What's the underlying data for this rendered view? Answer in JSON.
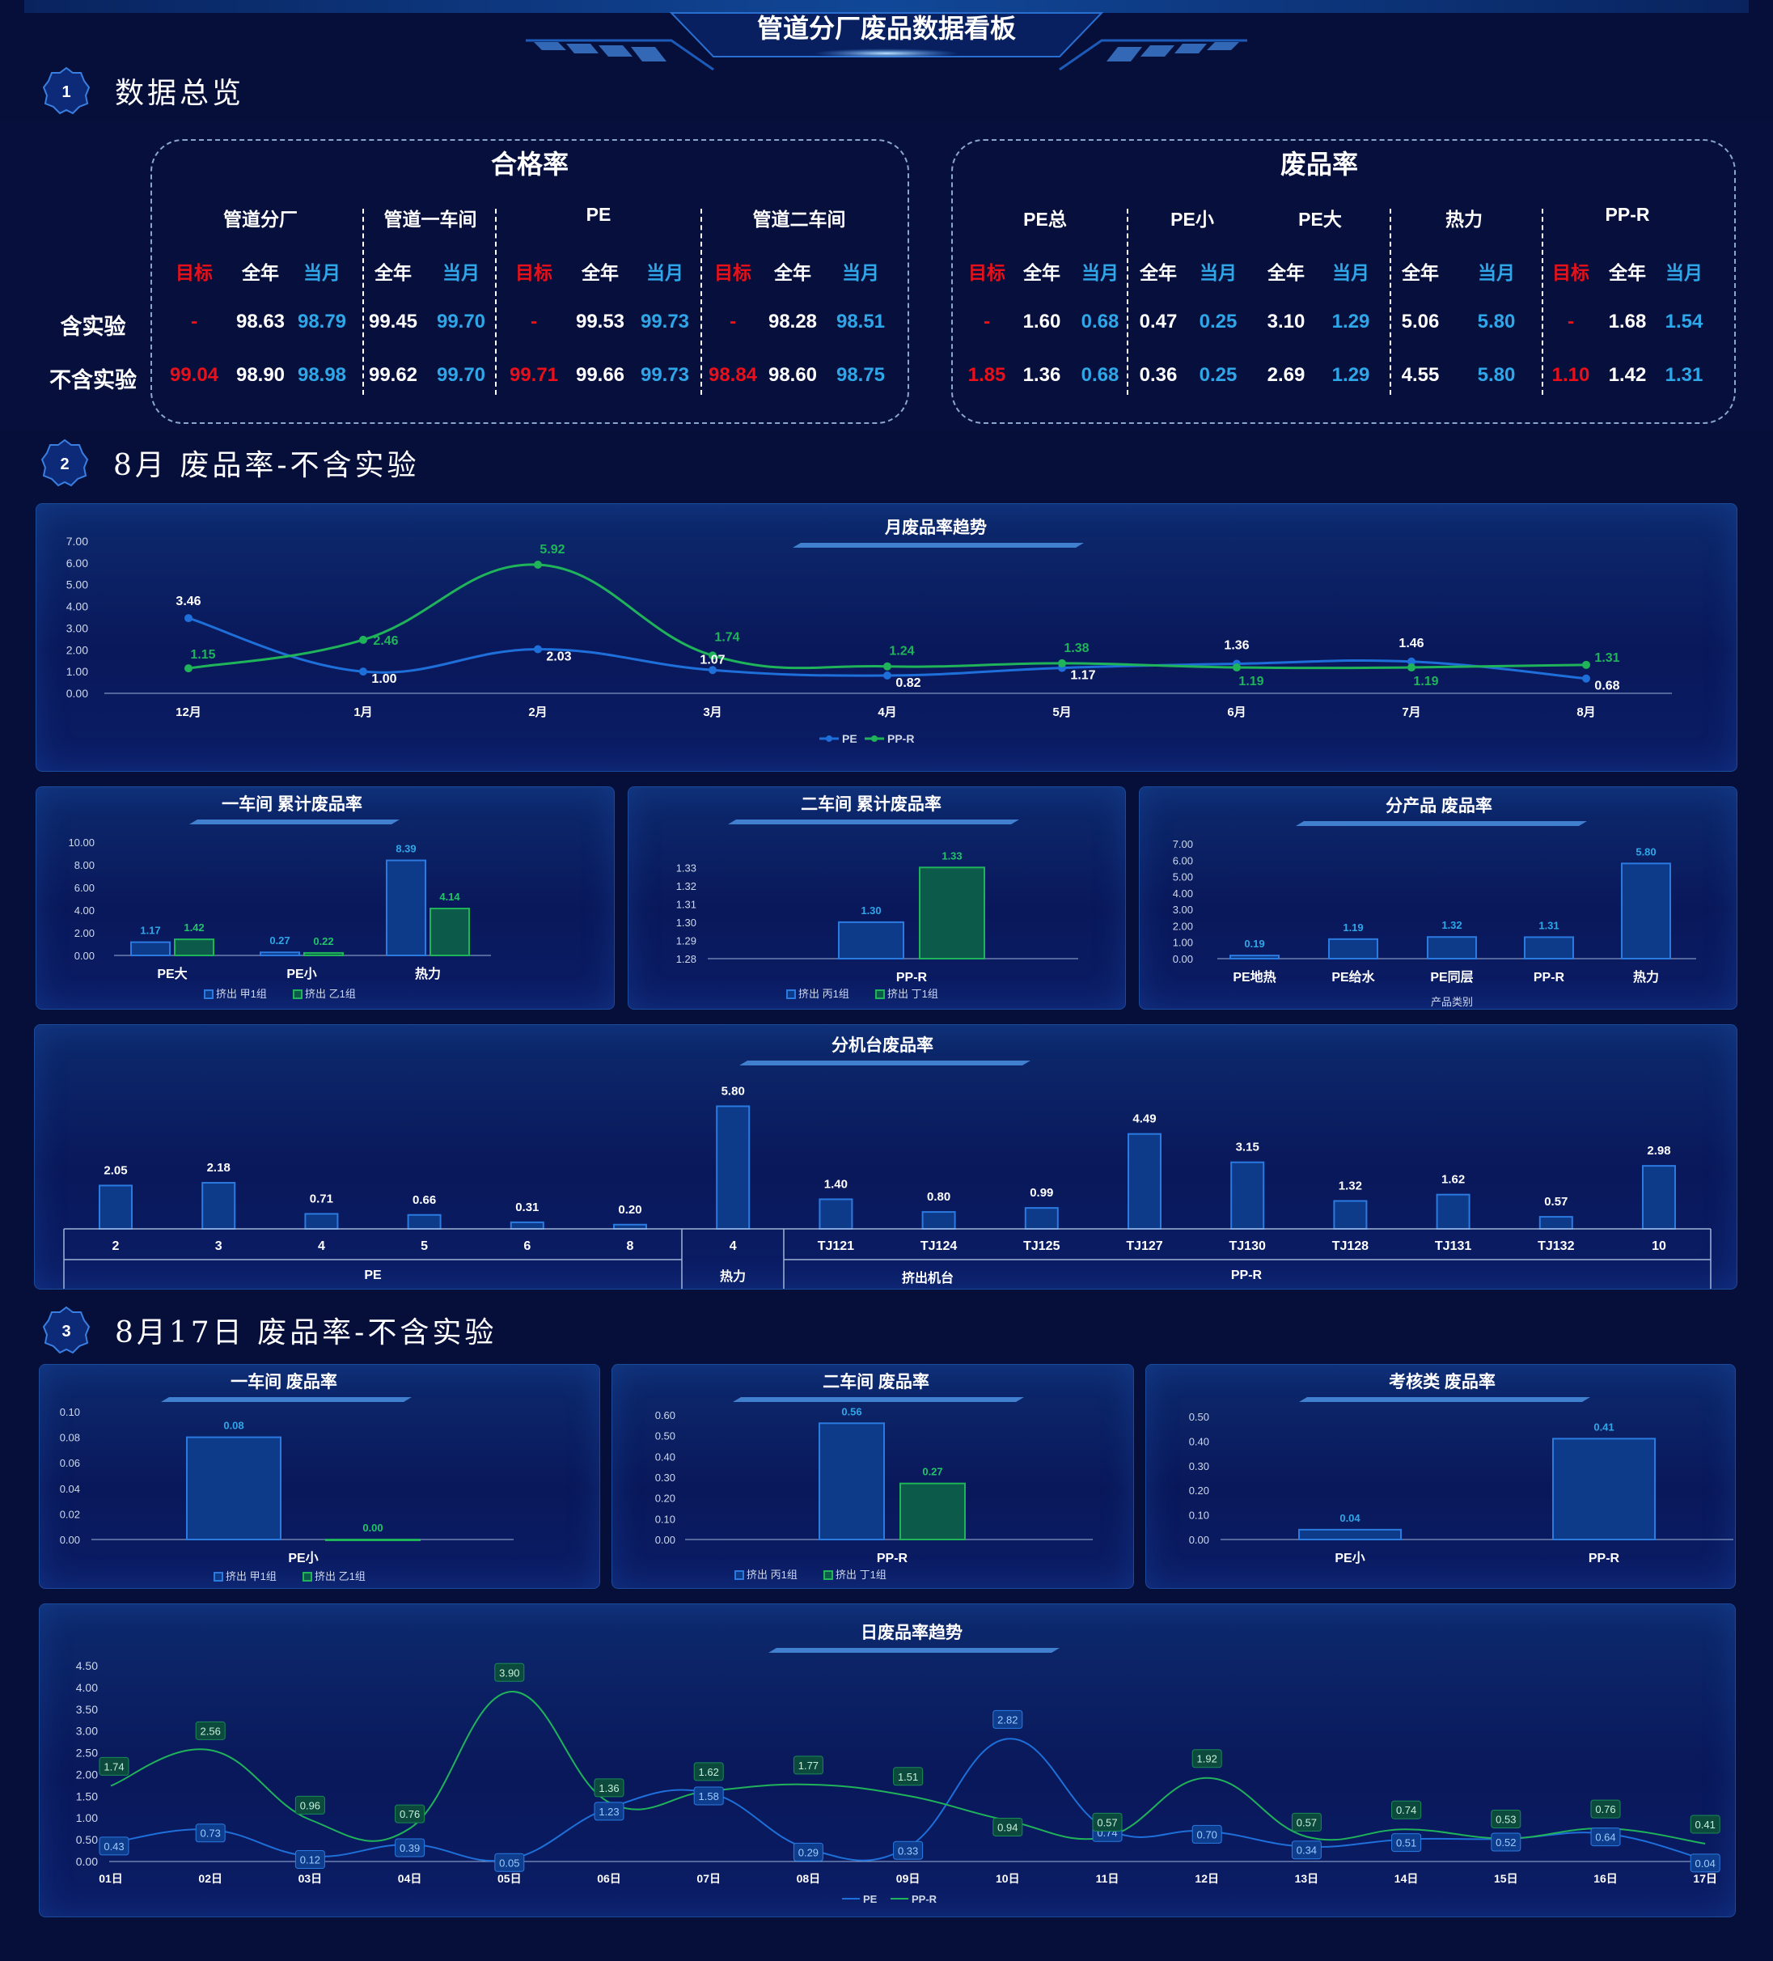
{
  "page_title": "管道分厂废品数据看板",
  "sections": [
    {
      "num": "1",
      "title": "数据总览"
    },
    {
      "num": "2",
      "title": "8月 废品率-不含实验"
    },
    {
      "num": "3",
      "title": "8月17日 废品率-不含实验"
    }
  ],
  "overview": {
    "pass_rate": {
      "title": "合格率",
      "groups": [
        "管道分厂",
        "管道一车间",
        "PE",
        "管道二车间"
      ],
      "col_labels": [
        "目标",
        "全年",
        "当月",
        "全年",
        "当月",
        "目标",
        "全年",
        "当月",
        "目标",
        "全年",
        "当月"
      ],
      "rows": [
        {
          "label": "含实验",
          "values": [
            "-",
            "98.63",
            "98.79",
            "99.45",
            "99.70",
            "-",
            "99.53",
            "99.73",
            "-",
            "98.28",
            "98.51"
          ]
        },
        {
          "label": "不含实验",
          "values": [
            "99.04",
            "98.90",
            "98.98",
            "99.62",
            "99.70",
            "99.71",
            "99.66",
            "99.73",
            "98.84",
            "98.60",
            "98.75"
          ]
        }
      ]
    },
    "scrap_rate": {
      "title": "废品率",
      "groups": [
        "PE总",
        "PE小",
        "PE大",
        "热力",
        "PP-R"
      ],
      "col_labels": [
        "目标",
        "全年",
        "当月",
        "全年",
        "当月",
        "全年",
        "当月",
        "全年",
        "当月",
        "目标",
        "全年",
        "当月"
      ],
      "rows": [
        {
          "values": [
            "-",
            "1.60",
            "0.68",
            "0.47",
            "0.25",
            "3.10",
            "1.29",
            "5.06",
            "5.80",
            "-",
            "1.68",
            "1.54"
          ]
        },
        {
          "values": [
            "1.85",
            "1.36",
            "0.68",
            "0.36",
            "0.25",
            "2.69",
            "1.29",
            "4.55",
            "5.80",
            "1.10",
            "1.42",
            "1.31"
          ]
        }
      ]
    }
  },
  "colors": {
    "red": "#e8101a",
    "blue": "#2fa6e8",
    "pe": "#1e6fd9",
    "ppr": "#1fb35a",
    "bar_blue": "#0e3a8a",
    "bar_green": "#0c5a4a"
  },
  "chart_data": [
    {
      "id": "monthly",
      "type": "line",
      "title": "月废品率趋势",
      "categories": [
        "12月",
        "1月",
        "2月",
        "3月",
        "4月",
        "5月",
        "6月",
        "7月",
        "8月"
      ],
      "series": [
        {
          "name": "PE",
          "values": [
            3.46,
            1.0,
            2.03,
            1.07,
            0.82,
            1.17,
            1.36,
            1.46,
            0.68
          ]
        },
        {
          "name": "PP-R",
          "values": [
            1.15,
            2.46,
            5.92,
            1.74,
            1.24,
            1.38,
            1.19,
            1.19,
            1.31
          ]
        }
      ],
      "yticks": [
        "0.00",
        "1.00",
        "2.00",
        "3.00",
        "4.00",
        "5.00",
        "6.00",
        "7.00"
      ],
      "ylim": [
        0,
        7
      ],
      "legend": "bottom"
    },
    {
      "id": "ws1",
      "type": "bar",
      "title": "一车间 累计废品率",
      "categories": [
        "PE大",
        "PE小",
        "热力"
      ],
      "series": [
        {
          "name": "挤出 甲1组",
          "values": [
            1.17,
            0.27,
            8.39
          ]
        },
        {
          "name": "挤出 乙1组",
          "values": [
            1.42,
            0.22,
            4.14
          ]
        }
      ],
      "yticks": [
        "0.00",
        "2.00",
        "4.00",
        "6.00",
        "8.00",
        "10.00"
      ],
      "ylim": [
        0,
        10
      ],
      "legend": "bottom"
    },
    {
      "id": "ws2",
      "type": "bar",
      "title": "二车间 累计废品率",
      "categories": [
        "PP-R"
      ],
      "series": [
        {
          "name": "挤出 丙1组",
          "values": [
            1.3
          ]
        },
        {
          "name": "挤出 丁1组",
          "values": [
            1.33
          ]
        }
      ],
      "yticks": [
        "1.28",
        "1.29",
        "1.30",
        "1.31",
        "1.32",
        "1.33"
      ],
      "ylim": [
        1.28,
        1.335
      ],
      "legend": "bottom"
    },
    {
      "id": "product",
      "type": "bar",
      "title": "分产品 废品率",
      "categories": [
        "PE地热",
        "PE给水",
        "PE同层",
        "PP-R",
        "热力"
      ],
      "series": [
        {
          "values": [
            0.19,
            1.19,
            1.32,
            1.31,
            5.8
          ]
        }
      ],
      "yticks": [
        "0.00",
        "1.00",
        "2.00",
        "3.00",
        "4.00",
        "5.00",
        "6.00",
        "7.00"
      ],
      "ylim": [
        0,
        7
      ],
      "xlabel": "产品类别"
    },
    {
      "id": "machines",
      "type": "bar",
      "title": "分机台废品率",
      "categories": [
        "2",
        "3",
        "4",
        "5",
        "6",
        "8",
        "4",
        "TJ121",
        "TJ124",
        "TJ125",
        "TJ127",
        "TJ130",
        "TJ128",
        "TJ131",
        "TJ132",
        "10"
      ],
      "series": [
        {
          "values": [
            2.05,
            2.18,
            0.71,
            0.66,
            0.31,
            0.2,
            5.8,
            1.4,
            0.8,
            0.99,
            4.49,
            3.15,
            1.32,
            1.62,
            0.57,
            2.98
          ]
        }
      ],
      "groups": [
        "PE",
        "热力",
        "挤出机台",
        "PP-R"
      ],
      "ylim": [
        0,
        6.2
      ]
    },
    {
      "id": "d_ws1",
      "type": "bar",
      "title": "一车间 废品率",
      "categories": [
        "PE小"
      ],
      "series": [
        {
          "name": "挤出 甲1组",
          "values": [
            0.08
          ]
        },
        {
          "name": "挤出 乙1组",
          "values": [
            0.0
          ]
        }
      ],
      "yticks": [
        "0.00",
        "0.02",
        "0.04",
        "0.06",
        "0.08",
        "0.10"
      ],
      "ylim": [
        0,
        0.1
      ],
      "legend": "bottom"
    },
    {
      "id": "d_ws2",
      "type": "bar",
      "title": "二车间 废品率",
      "categories": [
        "PP-R"
      ],
      "series": [
        {
          "name": "挤出 丙1组",
          "values": [
            0.56
          ]
        },
        {
          "name": "挤出 丁1组",
          "values": [
            0.27
          ]
        }
      ],
      "yticks": [
        "0.00",
        "0.10",
        "0.20",
        "0.30",
        "0.40",
        "0.50",
        "0.60"
      ],
      "ylim": [
        0,
        0.6
      ],
      "legend": "bottom"
    },
    {
      "id": "d_exam",
      "type": "bar",
      "title": "考核类 废品率",
      "categories": [
        "PE小",
        "PP-R"
      ],
      "series": [
        {
          "values": [
            0.04,
            0.41
          ]
        }
      ],
      "yticks": [
        "0.00",
        "0.10",
        "0.20",
        "0.30",
        "0.40",
        "0.50"
      ],
      "ylim": [
        0,
        0.5
      ]
    },
    {
      "id": "daily",
      "type": "line",
      "title": "日废品率趋势",
      "categories": [
        "01日",
        "02日",
        "03日",
        "04日",
        "05日",
        "06日",
        "07日",
        "08日",
        "09日",
        "10日",
        "11日",
        "12日",
        "13日",
        "14日",
        "15日",
        "16日",
        "17日"
      ],
      "series": [
        {
          "name": "PE",
          "values": [
            0.43,
            0.73,
            0.12,
            0.39,
            0.05,
            1.23,
            1.58,
            0.29,
            0.33,
            2.82,
            0.74,
            0.7,
            0.34,
            0.51,
            0.52,
            0.64,
            0.04
          ]
        },
        {
          "name": "PP-R",
          "values": [
            1.74,
            2.56,
            0.96,
            0.76,
            3.9,
            1.36,
            1.62,
            1.77,
            1.51,
            0.94,
            0.57,
            1.92,
            0.57,
            0.74,
            0.53,
            0.76,
            0.41
          ]
        }
      ],
      "yticks": [
        "0.00",
        "0.50",
        "1.00",
        "1.50",
        "2.00",
        "2.50",
        "3.00",
        "3.50",
        "4.00",
        "4.50"
      ],
      "ylim": [
        0,
        4.5
      ],
      "legend": "bottom"
    }
  ]
}
